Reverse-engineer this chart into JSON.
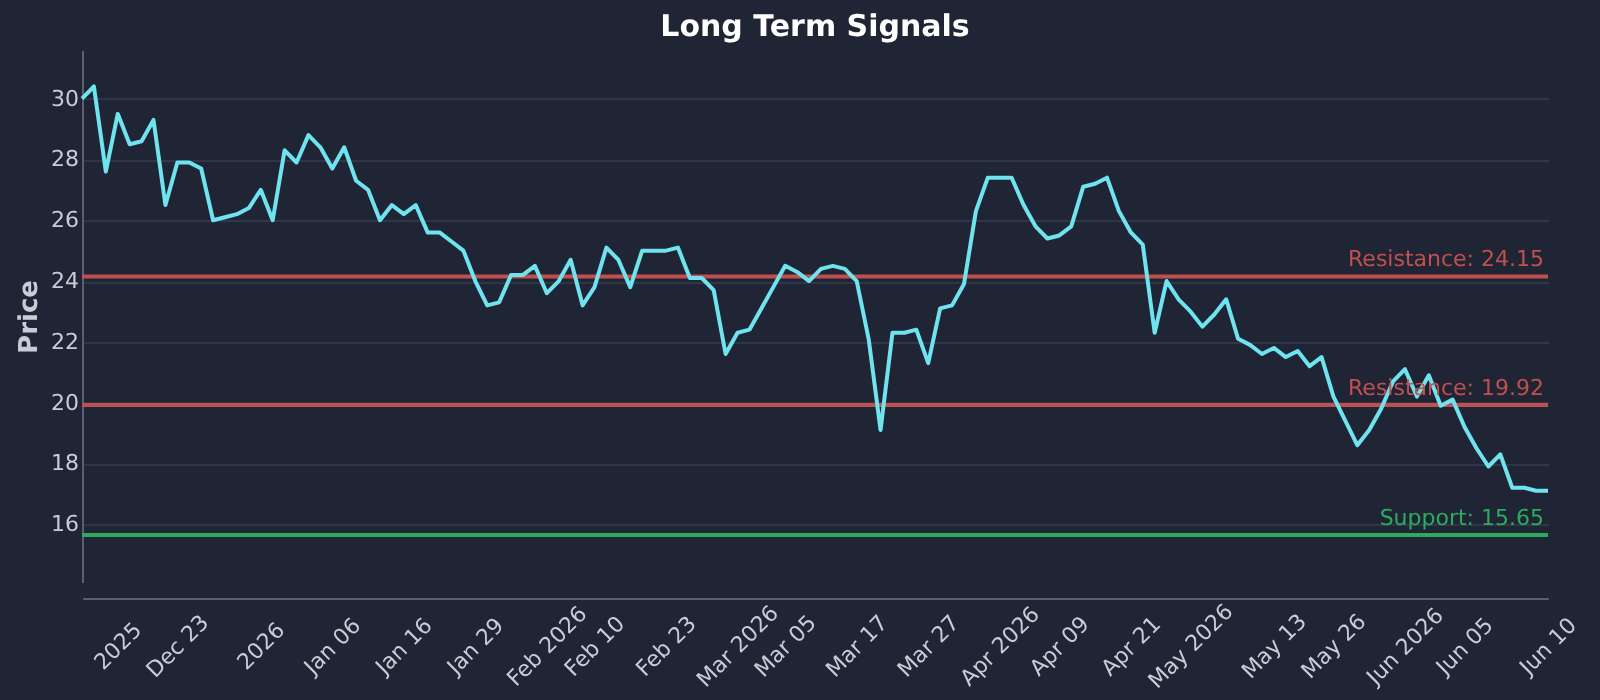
{
  "chart_data": {
    "type": "line",
    "title": "Long Term Signals",
    "ylabel": "Price",
    "categories": [
      null,
      null,
      null,
      "2025",
      null,
      null,
      null,
      null,
      "Dec 23",
      null,
      null,
      null,
      null,
      null,
      null,
      "2026",
      null,
      null,
      null,
      null,
      null,
      "Jan 06",
      null,
      null,
      null,
      null,
      null,
      "Jan 16",
      null,
      null,
      null,
      null,
      null,
      "Jan 29",
      null,
      null,
      null,
      null,
      null,
      "Feb 2026",
      null,
      null,
      null,
      "Feb 10",
      null,
      null,
      null,
      null,
      null,
      "Feb 23",
      null,
      null,
      null,
      null,
      null,
      "Mar 2026",
      null,
      null,
      null,
      "Mar 05",
      null,
      null,
      null,
      null,
      null,
      "Mar 17",
      null,
      null,
      null,
      null,
      null,
      "Mar 27",
      null,
      null,
      null,
      null,
      null,
      "Apr 2026",
      null,
      null,
      null,
      null,
      "Apr 09",
      null,
      null,
      null,
      null,
      null,
      "Apr 21",
      null,
      null,
      null,
      null,
      "May 2026",
      null,
      null,
      null,
      null,
      null,
      null,
      "May 13",
      null,
      null,
      null,
      null,
      "May 26",
      null,
      null,
      null,
      null,
      null,
      "Jun 2026",
      null,
      null,
      null,
      null,
      "Jun 05",
      null,
      null,
      null,
      null,
      null,
      null,
      "Jun 10"
    ],
    "series": [
      {
        "color": "#6fe3ee",
        "values": [
          30.0,
          30.4,
          27.6,
          29.5,
          28.5,
          28.6,
          29.3,
          26.5,
          27.9,
          27.9,
          27.7,
          26.0,
          26.1,
          26.2,
          26.4,
          27.0,
          26.0,
          28.3,
          27.9,
          28.8,
          28.4,
          27.7,
          28.4,
          27.3,
          27.0,
          26.0,
          26.5,
          26.2,
          26.5,
          25.6,
          25.6,
          25.3,
          25.0,
          24.0,
          23.2,
          23.3,
          24.2,
          24.2,
          24.5,
          23.6,
          24.0,
          24.7,
          23.2,
          23.8,
          25.1,
          24.7,
          23.8,
          25.0,
          25.0,
          25.0,
          25.1,
          24.1,
          24.1,
          23.7,
          21.6,
          22.3,
          22.4,
          23.1,
          23.8,
          24.5,
          24.3,
          24.0,
          24.4,
          24.5,
          24.4,
          24.0,
          22.1,
          19.1,
          22.3,
          22.3,
          22.4,
          21.3,
          23.1,
          23.2,
          23.9,
          26.3,
          27.4,
          27.4,
          27.4,
          26.5,
          25.8,
          25.4,
          25.5,
          25.8,
          27.1,
          27.2,
          27.4,
          26.3,
          25.6,
          25.2,
          22.3,
          24.0,
          23.4,
          23.0,
          22.5,
          22.9,
          23.4,
          22.1,
          21.9,
          21.6,
          21.8,
          21.5,
          21.7,
          21.2,
          21.5,
          20.2,
          19.4,
          18.6,
          19.1,
          19.8,
          20.7,
          21.1,
          20.2,
          20.9,
          19.9,
          20.1,
          19.2,
          18.5,
          17.9,
          18.3,
          17.2,
          17.2,
          17.1,
          17.1
        ]
      }
    ],
    "ylim": [
      14.1,
      31.6
    ],
    "yticks": [
      16,
      18,
      20,
      22,
      24,
      26,
      28,
      30
    ],
    "grid": "y",
    "line_style": "solid",
    "ref_lines": [
      {
        "axis": "y",
        "value": 24.15,
        "label": "Resistance: 24.15",
        "color": "#c0504d"
      },
      {
        "axis": "y",
        "value": 19.92,
        "label": "Resistance: 19.92",
        "color": "#c0504d"
      },
      {
        "axis": "y",
        "value": 15.65,
        "label": "Support: 15.65",
        "color": "#2eaa5c"
      }
    ]
  }
}
